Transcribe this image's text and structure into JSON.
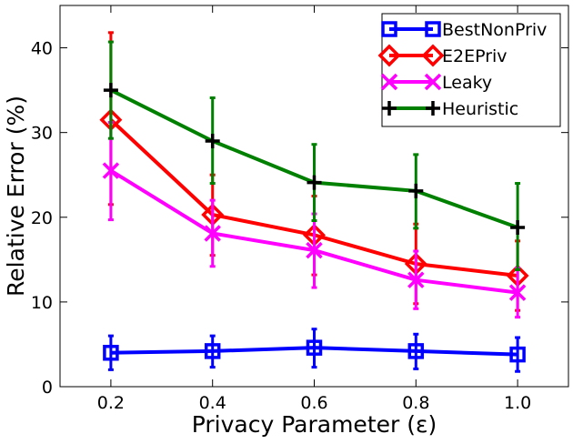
{
  "chart_data": {
    "type": "line",
    "title": "",
    "xlabel": "Privacy Parameter (ε)",
    "ylabel": "Relative Error (%)",
    "xlim": [
      0.1,
      1.1
    ],
    "ylim": [
      0,
      45
    ],
    "xticks": [
      0.2,
      0.4,
      0.6,
      0.8,
      1.0
    ],
    "xtick_labels": [
      "0.2",
      "0.4",
      "0.6",
      "0.8",
      "1.0"
    ],
    "yticks": [
      0,
      10,
      20,
      30,
      40
    ],
    "ytick_labels": [
      "0",
      "10",
      "20",
      "30",
      "40"
    ],
    "x": [
      0.2,
      0.4,
      0.6,
      0.8,
      1.0
    ],
    "legend_position": "top-right",
    "series": [
      {
        "name": "BestNonPriv",
        "color": "#0000ff",
        "errcolor": "#0000ff",
        "marker": "square",
        "values": [
          4.0,
          4.2,
          4.6,
          4.2,
          3.8
        ],
        "err_low": [
          2.0,
          2.3,
          2.3,
          2.1,
          1.8
        ],
        "err_high": [
          6.0,
          6.0,
          6.8,
          6.2,
          5.8
        ]
      },
      {
        "name": "E2EPriv",
        "color": "#ff0000",
        "errcolor": "#ff0000",
        "marker": "diamond",
        "values": [
          31.5,
          20.3,
          17.9,
          14.5,
          13.1
        ],
        "err_low": [
          21.5,
          15.5,
          13.2,
          9.8,
          9.0
        ],
        "err_high": [
          41.8,
          25.0,
          22.5,
          19.2,
          17.2
        ]
      },
      {
        "name": "Leaky",
        "color": "#ff00ff",
        "errcolor": "#ff00ff",
        "marker": "x",
        "values": [
          25.5,
          18.1,
          16.1,
          12.6,
          11.1
        ],
        "err_low": [
          19.7,
          14.2,
          11.7,
          9.2,
          8.2
        ],
        "err_high": [
          31.2,
          22.0,
          20.4,
          16.0,
          14.0
        ]
      },
      {
        "name": "Heuristic",
        "color": "#008000",
        "errcolor": "#008000",
        "marker": "plus",
        "values": [
          35.0,
          29.0,
          24.1,
          23.1,
          18.8
        ],
        "err_low": [
          29.3,
          24.0,
          19.6,
          18.7,
          13.8
        ],
        "err_high": [
          40.7,
          34.1,
          28.6,
          27.4,
          24.0
        ]
      }
    ]
  }
}
